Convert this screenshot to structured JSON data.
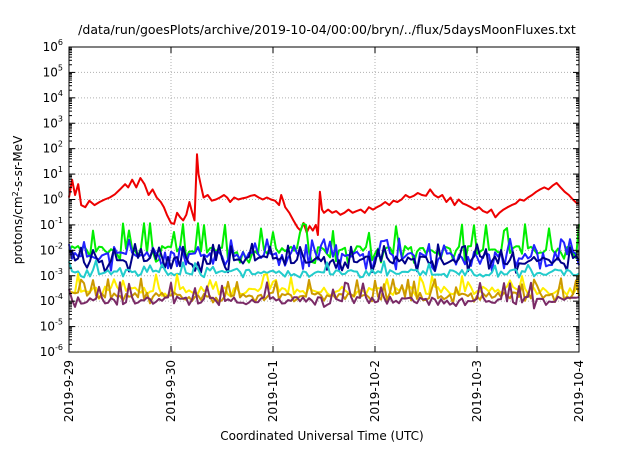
{
  "chart_data": {
    "type": "line",
    "title": "/data/run/goesPlots/archive/2019-10-04/00:00/bryn/../flux/5daysMoonFluxes.txt",
    "xlabel": "Coordinated Universal Time (UTC)",
    "ylabel": {
      "prefix": "protons/cm",
      "sup": "2",
      "suffix": "-s-sr-MeV"
    },
    "y_scale": "log",
    "ylim_exp": [
      -6,
      6
    ],
    "y_tick_exponents": [
      -6,
      -5,
      -4,
      -3,
      -2,
      -1,
      0,
      1,
      2,
      3,
      4,
      5,
      6
    ],
    "y_tick_base": "10",
    "grid": true,
    "x_ticks": [
      {
        "label": "2019-9-29",
        "day": 0
      },
      {
        "label": "2019-9-30",
        "day": 1
      },
      {
        "label": "2019-10-1",
        "day": 2
      },
      {
        "label": "2019-10-2",
        "day": 3
      },
      {
        "label": "2019-10-3",
        "day": 4
      },
      {
        "label": "2019-10-4",
        "day": 5
      }
    ],
    "x_range_days": [
      0,
      5
    ],
    "series": [
      {
        "color": "#ee0000",
        "points": [
          [
            0.0,
            1.2
          ],
          [
            0.03,
            6
          ],
          [
            0.06,
            1.5
          ],
          [
            0.09,
            4
          ],
          [
            0.12,
            0.6
          ],
          [
            0.16,
            0.5
          ],
          [
            0.2,
            0.9
          ],
          [
            0.25,
            0.6
          ],
          [
            0.3,
            0.8
          ],
          [
            0.35,
            1.0
          ],
          [
            0.4,
            1.2
          ],
          [
            0.45,
            1.6
          ],
          [
            0.5,
            2.5
          ],
          [
            0.55,
            4
          ],
          [
            0.58,
            3
          ],
          [
            0.62,
            6
          ],
          [
            0.66,
            3
          ],
          [
            0.7,
            7
          ],
          [
            0.74,
            4
          ],
          [
            0.78,
            1.5
          ],
          [
            0.82,
            2.5
          ],
          [
            0.86,
            1.2
          ],
          [
            0.9,
            0.8
          ],
          [
            0.93,
            0.5
          ],
          [
            0.96,
            0.25
          ],
          [
            1.0,
            0.12
          ],
          [
            1.03,
            0.11
          ],
          [
            1.06,
            0.3
          ],
          [
            1.09,
            0.2
          ],
          [
            1.12,
            0.15
          ],
          [
            1.15,
            0.25
          ],
          [
            1.18,
            0.8
          ],
          [
            1.2,
            0.4
          ],
          [
            1.23,
            0.15
          ],
          [
            1.255,
            60
          ],
          [
            1.27,
            10
          ],
          [
            1.29,
            4
          ],
          [
            1.32,
            1.2
          ],
          [
            1.36,
            1.5
          ],
          [
            1.4,
            0.9
          ],
          [
            1.44,
            1.0
          ],
          [
            1.48,
            1.2
          ],
          [
            1.52,
            1.5
          ],
          [
            1.55,
            1.2
          ],
          [
            1.58,
            0.8
          ],
          [
            1.62,
            1.2
          ],
          [
            1.66,
            1.0
          ],
          [
            1.7,
            1.1
          ],
          [
            1.74,
            1.2
          ],
          [
            1.78,
            1.4
          ],
          [
            1.82,
            1.5
          ],
          [
            1.86,
            1.2
          ],
          [
            1.9,
            1.0
          ],
          [
            1.94,
            1.2
          ],
          [
            1.98,
            1.0
          ],
          [
            2.02,
            0.9
          ],
          [
            2.06,
            0.6
          ],
          [
            2.08,
            1.5
          ],
          [
            2.1,
            0.9
          ],
          [
            2.12,
            0.5
          ],
          [
            2.16,
            0.3
          ],
          [
            2.2,
            0.15
          ],
          [
            2.24,
            0.08
          ],
          [
            2.27,
            0.06
          ],
          [
            2.3,
            0.12
          ],
          [
            2.33,
            0.05
          ],
          [
            2.36,
            0.09
          ],
          [
            2.39,
            0.06
          ],
          [
            2.42,
            0.1
          ],
          [
            2.44,
            0.04
          ],
          [
            2.46,
            2.0
          ],
          [
            2.48,
            0.4
          ],
          [
            2.5,
            0.3
          ],
          [
            2.54,
            0.4
          ],
          [
            2.58,
            0.3
          ],
          [
            2.62,
            0.35
          ],
          [
            2.66,
            0.25
          ],
          [
            2.7,
            0.3
          ],
          [
            2.74,
            0.4
          ],
          [
            2.78,
            0.3
          ],
          [
            2.82,
            0.35
          ],
          [
            2.86,
            0.4
          ],
          [
            2.9,
            0.3
          ],
          [
            2.94,
            0.5
          ],
          [
            2.98,
            0.4
          ],
          [
            3.02,
            0.5
          ],
          [
            3.06,
            0.6
          ],
          [
            3.1,
            0.8
          ],
          [
            3.14,
            0.6
          ],
          [
            3.18,
            0.9
          ],
          [
            3.22,
            0.8
          ],
          [
            3.26,
            1.0
          ],
          [
            3.3,
            1.5
          ],
          [
            3.34,
            1.2
          ],
          [
            3.38,
            1.4
          ],
          [
            3.42,
            1.8
          ],
          [
            3.46,
            1.5
          ],
          [
            3.5,
            1.4
          ],
          [
            3.54,
            2.5
          ],
          [
            3.58,
            1.5
          ],
          [
            3.62,
            1.2
          ],
          [
            3.66,
            1.5
          ],
          [
            3.7,
            0.8
          ],
          [
            3.74,
            1.2
          ],
          [
            3.78,
            0.6
          ],
          [
            3.82,
            1.0
          ],
          [
            3.86,
            0.7
          ],
          [
            3.9,
            0.6
          ],
          [
            3.94,
            0.5
          ],
          [
            3.98,
            0.4
          ],
          [
            4.02,
            0.5
          ],
          [
            4.06,
            0.35
          ],
          [
            4.1,
            0.3
          ],
          [
            4.14,
            0.4
          ],
          [
            4.18,
            0.2
          ],
          [
            4.22,
            0.3
          ],
          [
            4.26,
            0.4
          ],
          [
            4.3,
            0.5
          ],
          [
            4.34,
            0.6
          ],
          [
            4.38,
            0.7
          ],
          [
            4.42,
            1.0
          ],
          [
            4.46,
            0.9
          ],
          [
            4.5,
            1.2
          ],
          [
            4.54,
            1.5
          ],
          [
            4.58,
            2.0
          ],
          [
            4.62,
            2.5
          ],
          [
            4.66,
            3.0
          ],
          [
            4.7,
            2.5
          ],
          [
            4.74,
            3.5
          ],
          [
            4.78,
            4.5
          ],
          [
            4.82,
            3.0
          ],
          [
            4.86,
            2.0
          ],
          [
            4.9,
            1.5
          ],
          [
            4.94,
            1.0
          ],
          [
            4.98,
            0.7
          ],
          [
            5.0,
            0.7
          ]
        ]
      },
      {
        "color": "#00ee00",
        "base": 0.01,
        "hi": 0.12,
        "lo": 0.003,
        "seed": 3
      },
      {
        "color": "#2222ff",
        "base": 0.006,
        "hi": 0.03,
        "lo": 0.0015,
        "seed": 11
      },
      {
        "color": "#000088",
        "base": 0.004,
        "hi": 0.02,
        "lo": 0.0012,
        "seed": 17
      },
      {
        "color": "#22cccc",
        "base": 0.0012,
        "hi": 0.004,
        "lo": 0.0008,
        "seed": 23
      },
      {
        "color": "#ffee00",
        "base": 0.00025,
        "hi": 0.0012,
        "lo": 0.00012,
        "seed": 31
      },
      {
        "color": "#cc9900",
        "base": 0.00015,
        "hi": 0.0008,
        "lo": 8e-05,
        "seed": 37
      },
      {
        "color": "#7a2a66",
        "base": 0.0001,
        "hi": 0.0006,
        "lo": 5e-05,
        "seed": 41
      }
    ]
  }
}
